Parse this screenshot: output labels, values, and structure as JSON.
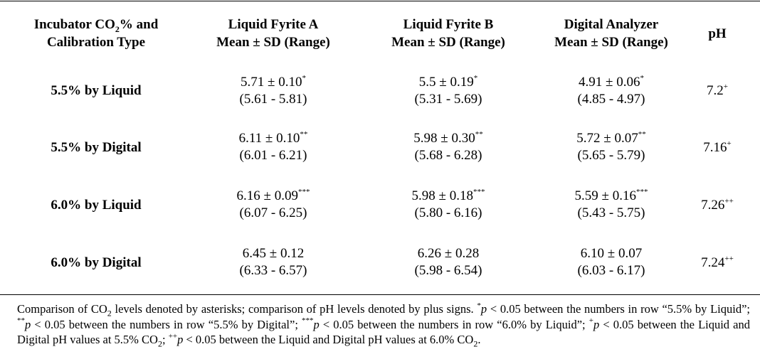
{
  "table": {
    "headers": {
      "col1": {
        "line1_pre": "Incubator CO",
        "line1_sub": "2",
        "line1_post": "% and",
        "line2": "Calibration Type"
      },
      "col2": {
        "line1": "Liquid Fyrite A",
        "line2": "Mean ± SD (Range)"
      },
      "col3": {
        "line1": "Liquid Fyrite B",
        "line2": "Mean ± SD (Range)"
      },
      "col4": {
        "line1": "Digital Analyzer",
        "line2": "Mean ± SD (Range)"
      },
      "col5": "pH"
    },
    "rows": [
      {
        "label": "5.5% by Liquid",
        "a": {
          "mean": "5.71 ± 0.10",
          "sup": "*",
          "range": "(5.61 - 5.81)"
        },
        "b": {
          "mean": "5.5 ± 0.19",
          "sup": "*",
          "range": "(5.31 - 5.69)"
        },
        "d": {
          "mean": "4.91 ± 0.06",
          "sup": "*",
          "range": "(4.85 - 4.97)"
        },
        "ph": {
          "value": "7.2",
          "sup": "+"
        }
      },
      {
        "label": "5.5% by Digital",
        "a": {
          "mean": "6.11 ± 0.10",
          "sup": "**",
          "range": "(6.01 - 6.21)"
        },
        "b": {
          "mean": "5.98 ± 0.30",
          "sup": "**",
          "range": "(5.68 - 6.28)"
        },
        "d": {
          "mean": "5.72 ± 0.07",
          "sup": "**",
          "range": "(5.65 - 5.79)"
        },
        "ph": {
          "value": "7.16",
          "sup": "+"
        }
      },
      {
        "label": "6.0% by Liquid",
        "a": {
          "mean": "6.16 ± 0.09",
          "sup": "***",
          "range": "(6.07 - 6.25)"
        },
        "b": {
          "mean": "5.98 ± 0.18",
          "sup": "***",
          "range": "(5.80 - 6.16)"
        },
        "d": {
          "mean": "5.59 ± 0.16",
          "sup": "***",
          "range": "(5.43 - 5.75)"
        },
        "ph": {
          "value": "7.26",
          "sup": "++"
        }
      },
      {
        "label": "6.0% by Digital",
        "a": {
          "mean": "6.45 ± 0.12",
          "sup": "",
          "range": "(6.33 - 6.57)"
        },
        "b": {
          "mean": "6.26 ± 0.28",
          "sup": "",
          "range": "(5.98 - 6.54)"
        },
        "d": {
          "mean": "6.10 ± 0.07",
          "sup": "",
          "range": "(6.03 - 6.17)"
        },
        "ph": {
          "value": "7.24",
          "sup": "++"
        }
      }
    ]
  },
  "footnote": {
    "t1": "Comparison of CO",
    "t1_sub": "2",
    "t2": " levels denoted by asterisks; comparison of pH levels denoted by plus signs. ",
    "s1": "*",
    "p1": "p",
    "t3": " < 0.05 between the numbers in row “5.5% by Liquid”; ",
    "s2": "**",
    "p2": "p",
    "t4": " < 0.05 between the numbers in row “5.5% by Digital”; ",
    "s3": "***",
    "p3": "p",
    "t5": " < 0.05 between the numbers in row “6.0% by Liquid”; ",
    "s4": "+",
    "p4": "p",
    "t6": " < 0.05 between the Liquid and Digital pH values at 5.5% CO",
    "t6_sub": "2",
    "t7": "; ",
    "s5": "++",
    "p5": "p",
    "t8": " < 0.05 between the Liquid and Digital pH values at 6.0% CO",
    "t8_sub": "2",
    "t9": "."
  }
}
